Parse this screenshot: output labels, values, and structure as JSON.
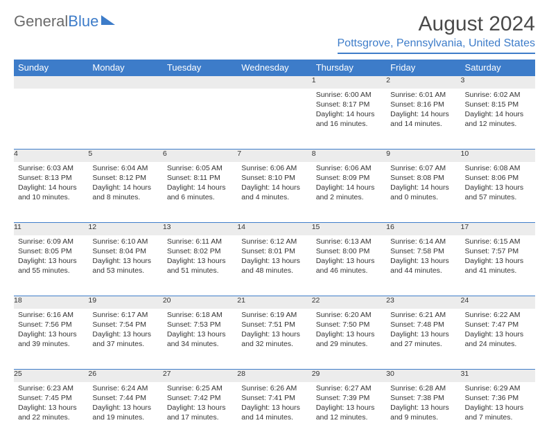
{
  "brand": {
    "part1": "General",
    "part2": "Blue"
  },
  "title": "August 2024",
  "location": "Pottsgrove, Pennsylvania, United States",
  "colors": {
    "accent": "#3d7cc9",
    "header_text": "#ffffff",
    "daynum_bg": "#ececec",
    "text": "#333333",
    "title": "#4a4a4a"
  },
  "weekdays": [
    "Sunday",
    "Monday",
    "Tuesday",
    "Wednesday",
    "Thursday",
    "Friday",
    "Saturday"
  ],
  "weeks": [
    [
      null,
      null,
      null,
      null,
      {
        "n": "1",
        "sr": "Sunrise: 6:00 AM",
        "ss": "Sunset: 8:17 PM",
        "dl": "Daylight: 14 hours and 16 minutes."
      },
      {
        "n": "2",
        "sr": "Sunrise: 6:01 AM",
        "ss": "Sunset: 8:16 PM",
        "dl": "Daylight: 14 hours and 14 minutes."
      },
      {
        "n": "3",
        "sr": "Sunrise: 6:02 AM",
        "ss": "Sunset: 8:15 PM",
        "dl": "Daylight: 14 hours and 12 minutes."
      }
    ],
    [
      {
        "n": "4",
        "sr": "Sunrise: 6:03 AM",
        "ss": "Sunset: 8:13 PM",
        "dl": "Daylight: 14 hours and 10 minutes."
      },
      {
        "n": "5",
        "sr": "Sunrise: 6:04 AM",
        "ss": "Sunset: 8:12 PM",
        "dl": "Daylight: 14 hours and 8 minutes."
      },
      {
        "n": "6",
        "sr": "Sunrise: 6:05 AM",
        "ss": "Sunset: 8:11 PM",
        "dl": "Daylight: 14 hours and 6 minutes."
      },
      {
        "n": "7",
        "sr": "Sunrise: 6:06 AM",
        "ss": "Sunset: 8:10 PM",
        "dl": "Daylight: 14 hours and 4 minutes."
      },
      {
        "n": "8",
        "sr": "Sunrise: 6:06 AM",
        "ss": "Sunset: 8:09 PM",
        "dl": "Daylight: 14 hours and 2 minutes."
      },
      {
        "n": "9",
        "sr": "Sunrise: 6:07 AM",
        "ss": "Sunset: 8:08 PM",
        "dl": "Daylight: 14 hours and 0 minutes."
      },
      {
        "n": "10",
        "sr": "Sunrise: 6:08 AM",
        "ss": "Sunset: 8:06 PM",
        "dl": "Daylight: 13 hours and 57 minutes."
      }
    ],
    [
      {
        "n": "11",
        "sr": "Sunrise: 6:09 AM",
        "ss": "Sunset: 8:05 PM",
        "dl": "Daylight: 13 hours and 55 minutes."
      },
      {
        "n": "12",
        "sr": "Sunrise: 6:10 AM",
        "ss": "Sunset: 8:04 PM",
        "dl": "Daylight: 13 hours and 53 minutes."
      },
      {
        "n": "13",
        "sr": "Sunrise: 6:11 AM",
        "ss": "Sunset: 8:02 PM",
        "dl": "Daylight: 13 hours and 51 minutes."
      },
      {
        "n": "14",
        "sr": "Sunrise: 6:12 AM",
        "ss": "Sunset: 8:01 PM",
        "dl": "Daylight: 13 hours and 48 minutes."
      },
      {
        "n": "15",
        "sr": "Sunrise: 6:13 AM",
        "ss": "Sunset: 8:00 PM",
        "dl": "Daylight: 13 hours and 46 minutes."
      },
      {
        "n": "16",
        "sr": "Sunrise: 6:14 AM",
        "ss": "Sunset: 7:58 PM",
        "dl": "Daylight: 13 hours and 44 minutes."
      },
      {
        "n": "17",
        "sr": "Sunrise: 6:15 AM",
        "ss": "Sunset: 7:57 PM",
        "dl": "Daylight: 13 hours and 41 minutes."
      }
    ],
    [
      {
        "n": "18",
        "sr": "Sunrise: 6:16 AM",
        "ss": "Sunset: 7:56 PM",
        "dl": "Daylight: 13 hours and 39 minutes."
      },
      {
        "n": "19",
        "sr": "Sunrise: 6:17 AM",
        "ss": "Sunset: 7:54 PM",
        "dl": "Daylight: 13 hours and 37 minutes."
      },
      {
        "n": "20",
        "sr": "Sunrise: 6:18 AM",
        "ss": "Sunset: 7:53 PM",
        "dl": "Daylight: 13 hours and 34 minutes."
      },
      {
        "n": "21",
        "sr": "Sunrise: 6:19 AM",
        "ss": "Sunset: 7:51 PM",
        "dl": "Daylight: 13 hours and 32 minutes."
      },
      {
        "n": "22",
        "sr": "Sunrise: 6:20 AM",
        "ss": "Sunset: 7:50 PM",
        "dl": "Daylight: 13 hours and 29 minutes."
      },
      {
        "n": "23",
        "sr": "Sunrise: 6:21 AM",
        "ss": "Sunset: 7:48 PM",
        "dl": "Daylight: 13 hours and 27 minutes."
      },
      {
        "n": "24",
        "sr": "Sunrise: 6:22 AM",
        "ss": "Sunset: 7:47 PM",
        "dl": "Daylight: 13 hours and 24 minutes."
      }
    ],
    [
      {
        "n": "25",
        "sr": "Sunrise: 6:23 AM",
        "ss": "Sunset: 7:45 PM",
        "dl": "Daylight: 13 hours and 22 minutes."
      },
      {
        "n": "26",
        "sr": "Sunrise: 6:24 AM",
        "ss": "Sunset: 7:44 PM",
        "dl": "Daylight: 13 hours and 19 minutes."
      },
      {
        "n": "27",
        "sr": "Sunrise: 6:25 AM",
        "ss": "Sunset: 7:42 PM",
        "dl": "Daylight: 13 hours and 17 minutes."
      },
      {
        "n": "28",
        "sr": "Sunrise: 6:26 AM",
        "ss": "Sunset: 7:41 PM",
        "dl": "Daylight: 13 hours and 14 minutes."
      },
      {
        "n": "29",
        "sr": "Sunrise: 6:27 AM",
        "ss": "Sunset: 7:39 PM",
        "dl": "Daylight: 13 hours and 12 minutes."
      },
      {
        "n": "30",
        "sr": "Sunrise: 6:28 AM",
        "ss": "Sunset: 7:38 PM",
        "dl": "Daylight: 13 hours and 9 minutes."
      },
      {
        "n": "31",
        "sr": "Sunrise: 6:29 AM",
        "ss": "Sunset: 7:36 PM",
        "dl": "Daylight: 13 hours and 7 minutes."
      }
    ]
  ]
}
